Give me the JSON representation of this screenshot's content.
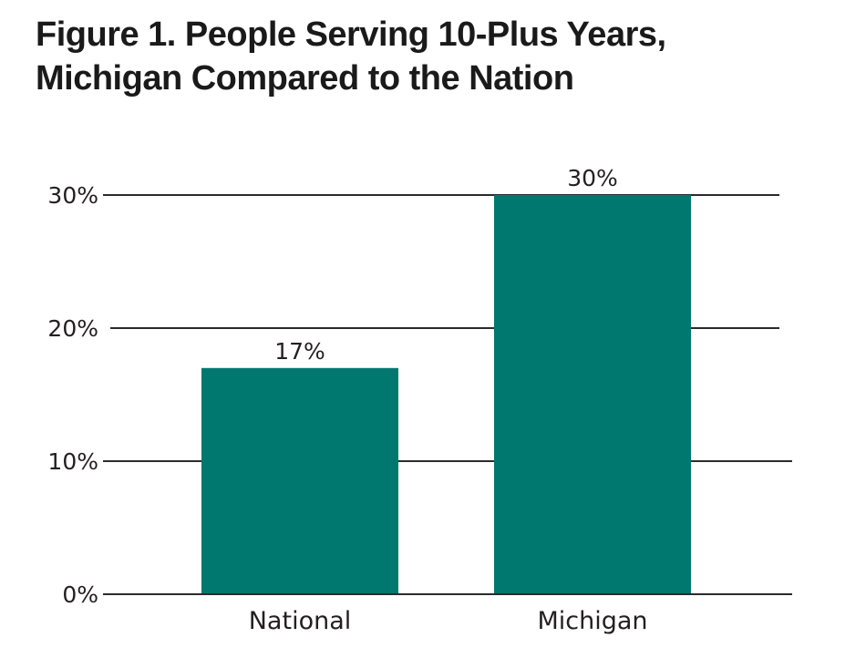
{
  "title_lines": [
    "Figure 1. People Serving 10-Plus Years,",
    "Michigan Compared to the Nation"
  ],
  "chart_data": {
    "type": "bar",
    "title": "Figure 1. People Serving 10-Plus Years, Michigan Compared to the Nation",
    "categories": [
      "National",
      "Michigan"
    ],
    "values": [
      17,
      30
    ],
    "data_labels": [
      "17%",
      "30%"
    ],
    "xlabel": "",
    "ylabel": "",
    "ylim": [
      0,
      30
    ],
    "yticks": [
      0,
      10,
      20,
      30
    ],
    "ytick_labels": [
      "0%",
      "10%",
      "20%",
      "30%"
    ],
    "grid": true,
    "legend": "none",
    "bar_color": "#00786F"
  }
}
